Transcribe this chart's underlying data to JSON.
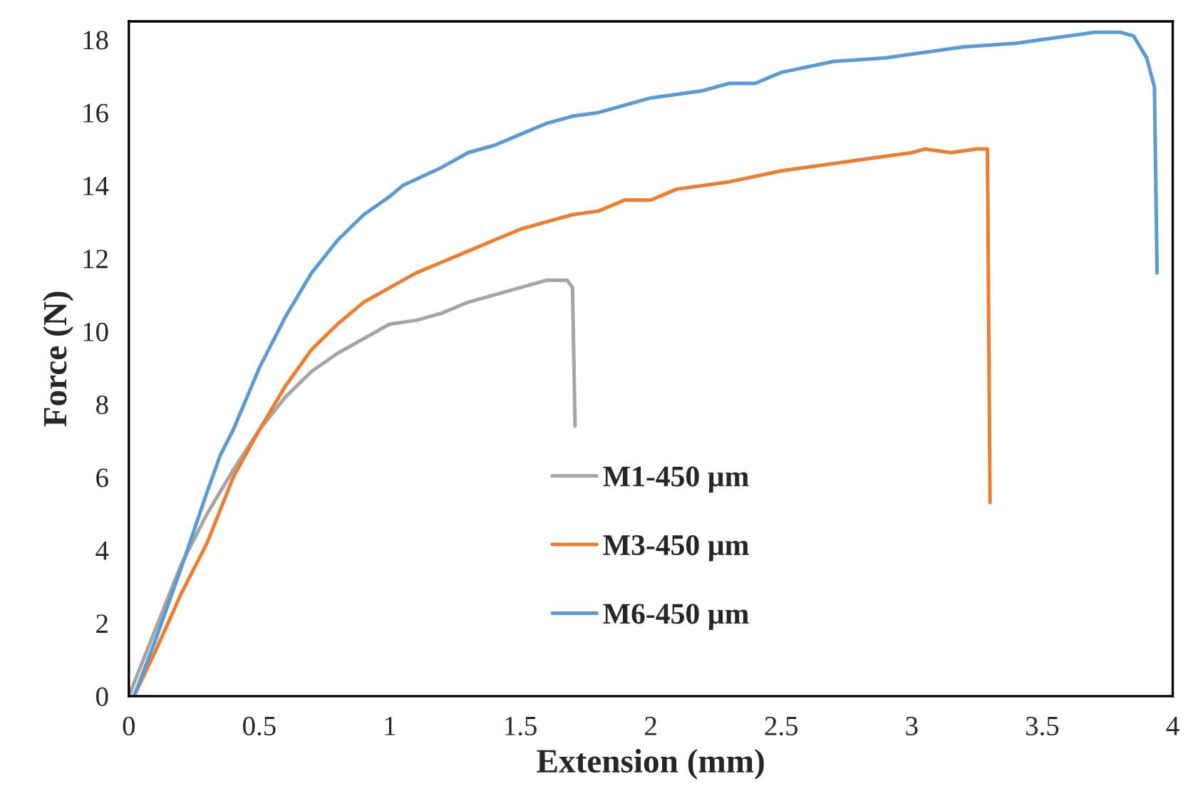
{
  "chart_data": {
    "type": "line",
    "xlabel": "Extension (mm)",
    "ylabel": "Force (N)",
    "xlim": [
      0,
      4
    ],
    "xticks": [
      0,
      0.5,
      1,
      1.5,
      2,
      2.5,
      3,
      3.5,
      4
    ],
    "ylim": [
      0,
      18.5
    ],
    "yticks": [
      0,
      2,
      4,
      6,
      8,
      10,
      12,
      14,
      16,
      18
    ],
    "grid": false,
    "legend": "bottom",
    "marker": "none",
    "line_style": "solid",
    "series": [
      {
        "name": "M1-450 µm",
        "color": "#a5a5a5",
        "x": [
          0,
          0.1,
          0.2,
          0.3,
          0.4,
          0.5,
          0.6,
          0.7,
          0.8,
          0.9,
          1.0,
          1.1,
          1.2,
          1.3,
          1.4,
          1.5,
          1.6,
          1.68,
          1.7,
          1.71
        ],
        "values": [
          0,
          1.8,
          3.6,
          5.0,
          6.2,
          7.3,
          8.2,
          8.9,
          9.4,
          9.8,
          10.2,
          10.3,
          10.5,
          10.8,
          11.0,
          11.2,
          11.4,
          11.4,
          11.2,
          7.4
        ]
      },
      {
        "name": "M3-450 µm",
        "color": "#ed7d31",
        "x": [
          0.02,
          0.1,
          0.2,
          0.3,
          0.4,
          0.5,
          0.6,
          0.7,
          0.8,
          0.9,
          1.0,
          1.1,
          1.2,
          1.3,
          1.4,
          1.5,
          1.6,
          1.7,
          1.8,
          1.9,
          2.0,
          2.1,
          2.3,
          2.5,
          2.7,
          2.9,
          3.0,
          3.05,
          3.15,
          3.25,
          3.29,
          3.3
        ],
        "values": [
          0,
          1.2,
          2.8,
          4.2,
          6.0,
          7.3,
          8.5,
          9.5,
          10.2,
          10.8,
          11.2,
          11.6,
          11.9,
          12.2,
          12.5,
          12.8,
          13.0,
          13.2,
          13.3,
          13.6,
          13.6,
          13.9,
          14.1,
          14.4,
          14.6,
          14.8,
          14.9,
          15.0,
          14.9,
          15.0,
          15.0,
          5.3
        ]
      },
      {
        "name": "M6-450 µm",
        "color": "#5b9bd5",
        "x": [
          0.02,
          0.1,
          0.2,
          0.3,
          0.35,
          0.4,
          0.5,
          0.6,
          0.7,
          0.8,
          0.9,
          1.0,
          1.05,
          1.2,
          1.3,
          1.4,
          1.5,
          1.6,
          1.7,
          1.8,
          1.9,
          2.0,
          2.2,
          2.3,
          2.4,
          2.5,
          2.7,
          2.9,
          3.0,
          3.2,
          3.4,
          3.5,
          3.6,
          3.7,
          3.8,
          3.85,
          3.9,
          3.93,
          3.94
        ],
        "values": [
          0,
          1.5,
          3.5,
          5.6,
          6.6,
          7.3,
          9.0,
          10.4,
          11.6,
          12.5,
          13.2,
          13.7,
          14.0,
          14.5,
          14.9,
          15.1,
          15.4,
          15.7,
          15.9,
          16.0,
          16.2,
          16.4,
          16.6,
          16.8,
          16.8,
          17.1,
          17.4,
          17.5,
          17.6,
          17.8,
          17.9,
          18.0,
          18.1,
          18.2,
          18.2,
          18.1,
          17.5,
          16.7,
          11.6
        ]
      }
    ]
  }
}
